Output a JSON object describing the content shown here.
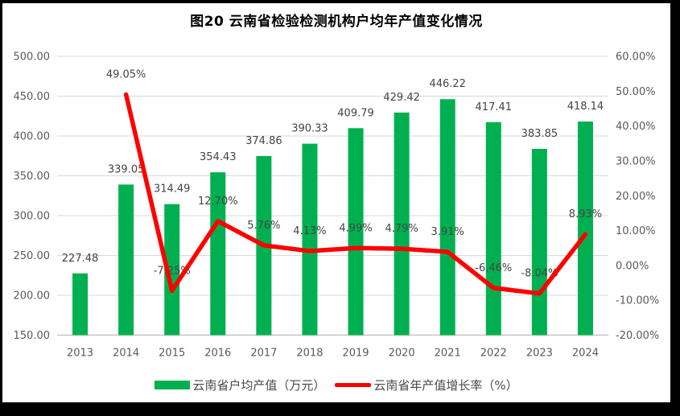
{
  "frame": {
    "background": "#000000",
    "chart_background": "#FFFFFF"
  },
  "chart_data": {
    "type": "combo",
    "title": "图20  云南省检验检测机构户均年产值变化情况",
    "categories": [
      "2013",
      "2014",
      "2015",
      "2016",
      "2017",
      "2018",
      "2019",
      "2020",
      "2021",
      "2022",
      "2023",
      "2024"
    ],
    "series": [
      {
        "name": "云南省户均产值（万元）",
        "type": "bar",
        "axis": "left",
        "color": "#00B050",
        "values": [
          227.48,
          339.05,
          314.49,
          354.43,
          374.86,
          390.33,
          409.79,
          429.42,
          446.22,
          417.41,
          383.85,
          418.14
        ],
        "labels": [
          "227.48",
          "339.05",
          "314.49",
          "354.43",
          "374.86",
          "390.33",
          "409.79",
          "429.42",
          "446.22",
          "417.41",
          "383.85",
          "418.14"
        ]
      },
      {
        "name": "云南省年产值增长率（%）",
        "type": "line",
        "axis": "right",
        "color": "#FF0000",
        "values": [
          null,
          49.05,
          -7.25,
          12.7,
          5.76,
          4.13,
          4.99,
          4.79,
          3.91,
          -6.46,
          -8.04,
          8.93
        ],
        "labels": [
          null,
          "49.05%",
          "-7.25%",
          "12.70%",
          "5.76%",
          "4.13%",
          "4.99%",
          "4.79%",
          "3.91%",
          "-6.46%",
          "-8.04%",
          "8.93%"
        ]
      }
    ],
    "left_axis": {
      "min": 150,
      "max": 500,
      "step": 50,
      "ticks": [
        "150.00",
        "200.00",
        "250.00",
        "300.00",
        "350.00",
        "400.00",
        "450.00",
        "500.00"
      ]
    },
    "right_axis": {
      "min": -20,
      "max": 60,
      "step": 10,
      "ticks": [
        "-20.00%",
        "-10.00%",
        "0.00%",
        "10.00%",
        "20.00%",
        "30.00%",
        "40.00%",
        "50.00%",
        "60.00%"
      ]
    },
    "grid": true,
    "legend_position": "bottom",
    "colors": {
      "gridline": "#D9D9D9",
      "axis_line": "#C6C6C6",
      "tick_text": "#595959",
      "data_label_text": "#444444",
      "title_text": "#000000"
    }
  }
}
